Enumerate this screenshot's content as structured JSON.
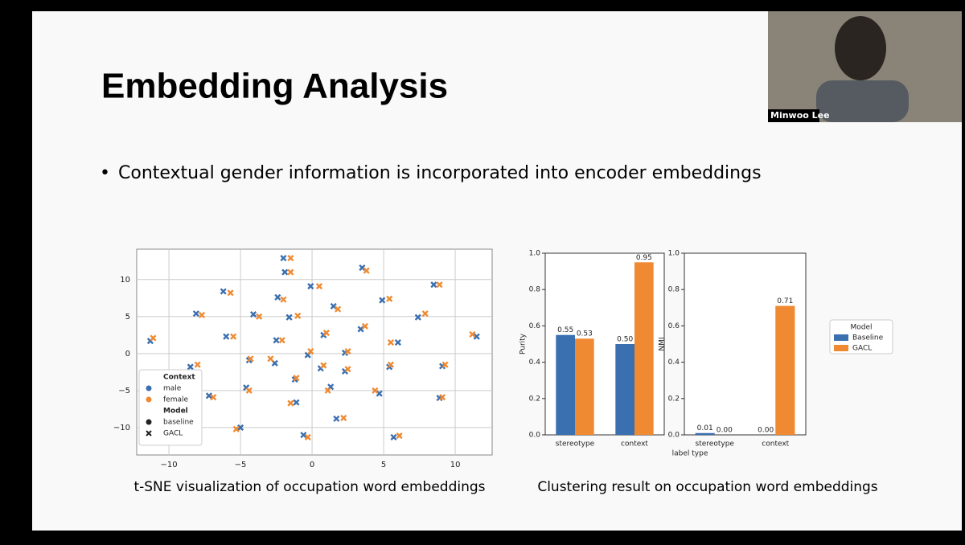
{
  "slide": {
    "title": "Embedding Analysis",
    "bullet": "Contextual gender information is incorporated into encoder embeddings",
    "captions": [
      "t-SNE visualization of occupation word embeddings",
      "Clustering result on occupation word embeddings"
    ],
    "participant": "Minwoo Lee"
  },
  "chart_data": [
    {
      "type": "scatter",
      "xlim": [
        -12.25,
        12.58
      ],
      "ylim": [
        -13.7,
        14.1
      ],
      "xticks": [
        {
          "value": -10,
          "label": "−10"
        },
        {
          "value": -5,
          "label": "−5"
        },
        0,
        5,
        10
      ],
      "yticks": [
        {
          "value": -10,
          "label": "−10"
        },
        {
          "value": -5,
          "label": "−5"
        },
        0,
        5,
        10
      ],
      "grid": true,
      "legend_title": "Context",
      "marker_legend": {
        "title": "Model",
        "items": [
          {
            "label": "baseline",
            "marker": "circle"
          },
          {
            "label": "GACL",
            "marker": "x"
          }
        ]
      },
      "series": [
        {
          "name": "male",
          "color": "#3a6fb0",
          "marker": "x",
          "x": [
            -2.0,
            -1.9,
            3.5,
            -0.1,
            -6.2,
            8.5,
            -2.4,
            4.9,
            1.5,
            -8.1,
            -4.1,
            -1.6,
            7.4,
            3.4,
            0.8,
            -6.0,
            -2.5,
            -11.3,
            11.5,
            6.0,
            -0.3,
            2.3,
            -4.4,
            -2.6,
            0.6,
            -8.5,
            2.3,
            5.4,
            9.1,
            -1.2,
            1.3,
            -4.6,
            4.7,
            -7.2,
            -1.1,
            8.9,
            1.7,
            -5.0,
            -0.6,
            5.7
          ],
          "values": [
            12.9,
            11.0,
            11.6,
            9.1,
            8.4,
            9.3,
            7.6,
            7.2,
            6.4,
            5.4,
            5.3,
            4.9,
            4.9,
            3.3,
            2.5,
            2.3,
            1.8,
            1.7,
            2.3,
            1.5,
            -0.2,
            0.1,
            -0.9,
            -1.3,
            -2.0,
            -1.8,
            -2.4,
            -1.8,
            -1.7,
            -3.5,
            -4.5,
            -4.6,
            -5.4,
            -5.7,
            -6.6,
            -6.0,
            -8.8,
            -10.0,
            -11.0,
            -11.3
          ]
        },
        {
          "name": "female",
          "color": "#f08a32",
          "marker": "x",
          "x": [
            -1.5,
            -1.5,
            3.8,
            0.5,
            -5.7,
            8.9,
            -2.0,
            5.4,
            1.8,
            -7.7,
            -3.7,
            -1.0,
            7.9,
            3.7,
            1.0,
            -5.5,
            -2.1,
            -11.1,
            11.2,
            5.5,
            -0.1,
            2.5,
            -4.3,
            -2.9,
            0.8,
            -8.0,
            2.5,
            5.5,
            9.3,
            -1.1,
            1.1,
            -4.4,
            4.4,
            -6.9,
            -1.5,
            9.1,
            2.2,
            -5.3,
            -0.3,
            6.1
          ],
          "values": [
            12.9,
            11.0,
            11.2,
            9.1,
            8.2,
            9.3,
            7.3,
            7.4,
            6.0,
            5.2,
            5.0,
            5.1,
            5.4,
            3.7,
            2.8,
            2.3,
            1.8,
            2.1,
            2.6,
            1.5,
            0.3,
            0.3,
            -0.7,
            -0.7,
            -1.6,
            -1.5,
            -2.1,
            -1.5,
            -1.5,
            -3.3,
            -5.0,
            -5.0,
            -5.0,
            -5.9,
            -6.7,
            -5.9,
            -8.7,
            -10.2,
            -11.3,
            -11.1
          ]
        }
      ]
    },
    {
      "type": "bar",
      "ylabel": "Purity",
      "categories": [
        "stereotype",
        "context"
      ],
      "ylim": [
        0,
        1
      ],
      "yticks": [
        {
          "value": 0,
          "label": "0.0"
        },
        {
          "value": 0.2,
          "label": "0.2"
        },
        {
          "value": 0.4,
          "label": "0.4"
        },
        {
          "value": 0.6,
          "label": "0.6"
        },
        {
          "value": 0.8,
          "label": "0.8"
        },
        {
          "value": 1,
          "label": "1.0"
        }
      ],
      "series": [
        {
          "name": "Baseline",
          "color": "#3a6fb0",
          "values": [
            0.55,
            0.5
          ],
          "value_labels": [
            "0.55",
            "0.50"
          ]
        },
        {
          "name": "GACL",
          "color": "#f08a32",
          "values": [
            0.53,
            0.95
          ],
          "value_labels": [
            "0.53",
            "0.95"
          ]
        }
      ]
    },
    {
      "type": "bar",
      "ylabel": "NMI",
      "xlabel": "label type",
      "categories": [
        "stereotype",
        "context"
      ],
      "ylim": [
        0,
        1
      ],
      "yticks": [
        {
          "value": 0,
          "label": "0.0"
        },
        {
          "value": 0.2,
          "label": "0.2"
        },
        {
          "value": 0.4,
          "label": "0.4"
        },
        {
          "value": 0.6,
          "label": "0.6"
        },
        {
          "value": 0.8,
          "label": "0.8"
        },
        {
          "value": 1,
          "label": "1.0"
        }
      ],
      "legend_title": "Model",
      "series": [
        {
          "name": "Baseline",
          "color": "#3a6fb0",
          "values": [
            0.01,
            0
          ],
          "value_labels": [
            "0.01",
            "0.00"
          ]
        },
        {
          "name": "GACL",
          "color": "#f08a32",
          "values": [
            0,
            0.71
          ],
          "value_labels": [
            "0.00",
            "0.71"
          ]
        }
      ]
    }
  ]
}
